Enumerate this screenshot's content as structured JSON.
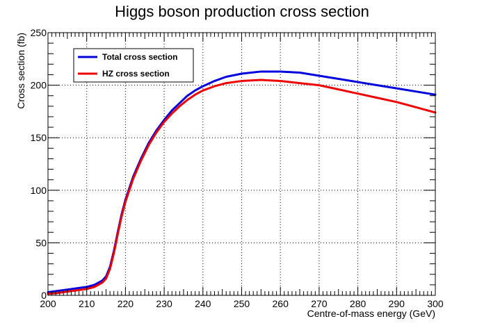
{
  "chart_data": {
    "type": "line",
    "title": "Higgs boson production cross section",
    "xlabel": "Centre-of-mass energy (GeV)",
    "ylabel": "Cross section (fb)",
    "xlim": [
      200,
      300
    ],
    "ylim": [
      0,
      250
    ],
    "x_ticks": [
      200,
      210,
      220,
      230,
      240,
      250,
      260,
      270,
      280,
      290,
      300
    ],
    "y_ticks": [
      0,
      50,
      100,
      150,
      200,
      250
    ],
    "grid": true,
    "legend_position": "top-left",
    "series": [
      {
        "name": "Total cross section",
        "color": "#0000dd",
        "x": [
          200,
          202,
          204,
          206,
          208,
          210,
          212,
          214,
          215,
          216,
          217,
          218,
          219,
          220,
          221,
          222,
          224,
          226,
          228,
          230,
          232,
          234,
          236,
          238,
          240,
          243,
          246,
          250,
          255,
          260,
          265,
          270,
          275,
          280,
          285,
          290,
          295,
          300
        ],
        "y": [
          3,
          4,
          5,
          6,
          7,
          8,
          10,
          14,
          18,
          27,
          42,
          60,
          77,
          91,
          102,
          113,
          130,
          145,
          157,
          167,
          176,
          183,
          190,
          195,
          199,
          204,
          208,
          211,
          213,
          213,
          212,
          209,
          206,
          203,
          200,
          197,
          194,
          191
        ]
      },
      {
        "name": "HZ cross section",
        "color": "#ee0000",
        "x": [
          200,
          202,
          204,
          206,
          208,
          210,
          212,
          214,
          215,
          216,
          217,
          218,
          219,
          220,
          221,
          222,
          224,
          226,
          228,
          230,
          232,
          234,
          236,
          238,
          240,
          243,
          246,
          250,
          255,
          260,
          265,
          270,
          275,
          280,
          285,
          290,
          295,
          300
        ],
        "y": [
          1.5,
          2,
          3,
          4,
          5,
          6,
          8,
          12,
          16,
          25,
          40,
          58,
          75,
          89,
          100,
          111,
          128,
          143,
          155,
          165,
          173,
          180,
          186,
          191,
          195,
          199,
          202,
          204,
          205,
          204,
          202,
          200,
          196,
          192,
          188,
          184,
          179,
          174
        ]
      }
    ]
  }
}
